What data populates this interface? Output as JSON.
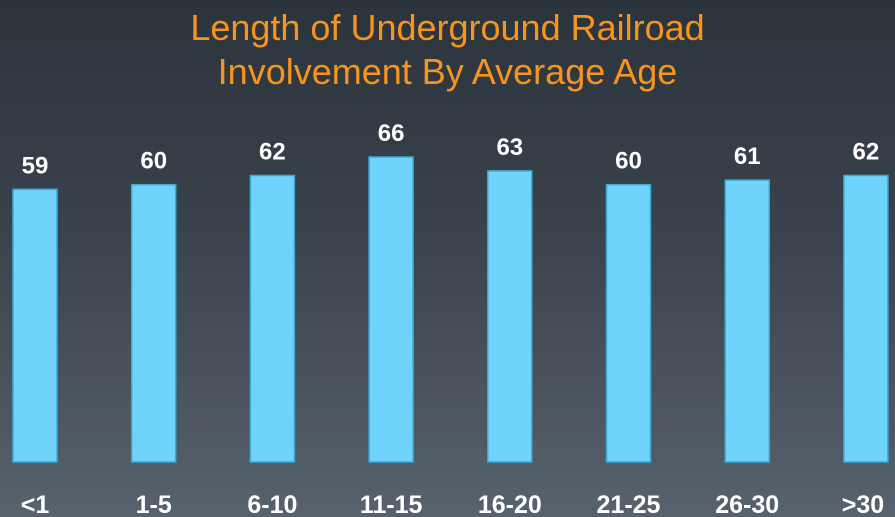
{
  "chart_data": {
    "type": "bar",
    "title_lines": [
      "Length of Underground Railroad",
      "Involvement By Average Age"
    ],
    "categories": [
      "<1",
      "1-5",
      "6-10",
      "11-15",
      "16-20",
      "21-25",
      "26-30",
      ">30"
    ],
    "values": [
      59,
      60,
      62,
      66,
      63,
      60,
      61,
      62
    ],
    "xlabel": "",
    "ylabel": "",
    "ylim": [
      0,
      66
    ],
    "grid": false,
    "legend": "none",
    "bar_color": "#6fd3fc",
    "title_color": "#f7941d",
    "label_color": "#ffffff"
  }
}
